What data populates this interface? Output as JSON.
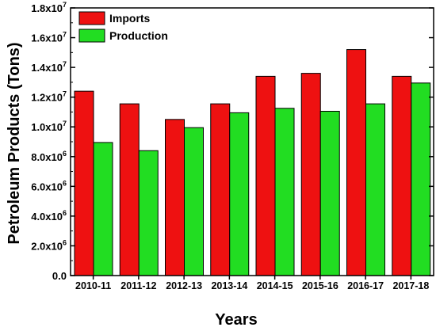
{
  "chart_data": {
    "type": "bar",
    "xlabel": "Years",
    "ylabel": "Petroleum Products (Tons)",
    "categories": [
      "2010-11",
      "2011-12",
      "2012-13",
      "2013-14",
      "2014-15",
      "2015-16",
      "2016-17",
      "2017-18"
    ],
    "series": [
      {
        "name": "Imports",
        "color": "#ee1111",
        "values": [
          12400000,
          11550000,
          10500000,
          11550000,
          13400000,
          13600000,
          15200000,
          13400000
        ]
      },
      {
        "name": "Production",
        "color": "#22dd22",
        "values": [
          8950000,
          8400000,
          9950000,
          10950000,
          11250000,
          11050000,
          11550000,
          12950000
        ]
      }
    ],
    "ylim": [
      0,
      18000000
    ],
    "yticks": [
      {
        "value": 0,
        "mantissa": "0.0",
        "exp": ""
      },
      {
        "value": 2000000,
        "mantissa": "2.0x10",
        "exp": "6"
      },
      {
        "value": 4000000,
        "mantissa": "4.0x10",
        "exp": "6"
      },
      {
        "value": 6000000,
        "mantissa": "6.0x10",
        "exp": "6"
      },
      {
        "value": 8000000,
        "mantissa": "8.0x10",
        "exp": "6"
      },
      {
        "value": 10000000,
        "mantissa": "1.0x10",
        "exp": "7"
      },
      {
        "value": 12000000,
        "mantissa": "1.2x10",
        "exp": "7"
      },
      {
        "value": 14000000,
        "mantissa": "1.4x10",
        "exp": "7"
      },
      {
        "value": 16000000,
        "mantissa": "1.6x10",
        "exp": "7"
      },
      {
        "value": 18000000,
        "mantissa": "1.8x10",
        "exp": "7"
      }
    ],
    "grid": false,
    "legend_position": "top-left"
  }
}
